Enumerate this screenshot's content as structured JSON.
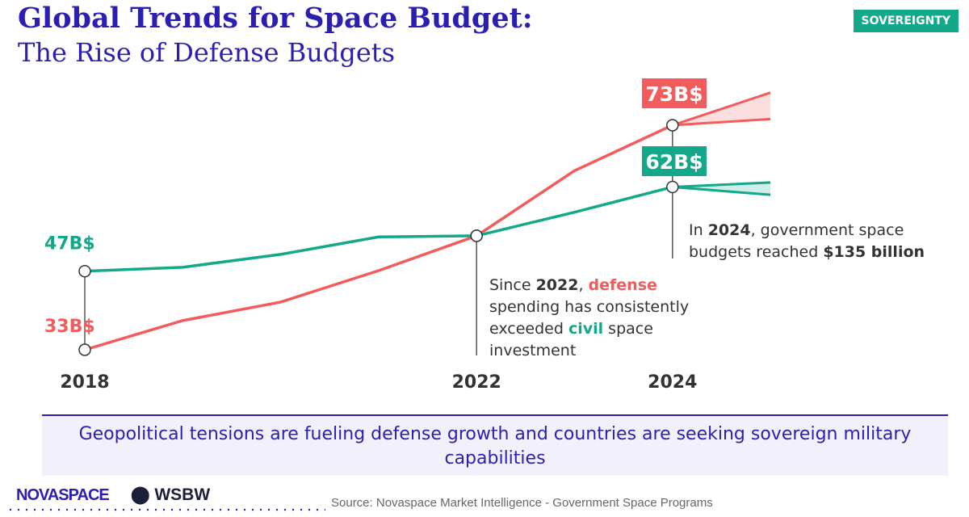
{
  "title": "Global Trends for Space Budget:",
  "subtitle": "The Rise of Defense Budgets",
  "tag": "SOVEREIGNTY",
  "chart_data": {
    "type": "line",
    "x": [
      2018,
      2019,
      2020,
      2021,
      2022,
      2023,
      2024
    ],
    "x_tick_labels": [
      "2018",
      "2022",
      "2024"
    ],
    "series": [
      {
        "key": "defense",
        "color": "#f25c5c",
        "values": [
          33,
          38.2,
          41.5,
          47.1,
          53.3,
          64.9,
          73
        ],
        "forecast_2025_range": [
          74.1,
          78.8
        ]
      },
      {
        "key": "civil",
        "color": "#14a88a",
        "values": [
          47,
          47.7,
          50,
          53.1,
          53.3,
          57.5,
          62
        ],
        "forecast_2025_range": [
          60.6,
          62.8
        ]
      }
    ],
    "data_labels": {
      "defense_2018": "33B$",
      "civil_2018": "47B$",
      "defense_2024": "73B$",
      "civil_2024": "62B$"
    },
    "annotations": {
      "a2022": {
        "p1": "Since ",
        "y": "2022",
        ",": ", ",
        "d": "defense",
        "p2": " spending has consistently exceeded ",
        "c": "civil",
        "p3": " space investment"
      },
      "a2024": {
        "p1": "In ",
        "y": "2024",
        "p2": ", government space budgets reached ",
        "v": "$135 billion"
      }
    },
    "grid": false
  },
  "banner": "Geopolitical tensions are fueling defense growth and countries are seeking sovereign military capabilities",
  "source": "Source: Novaspace Market Intelligence - Government Space Programs",
  "logos": {
    "novaspace": "NOVASPACE",
    "wsbw": "WSBW"
  }
}
